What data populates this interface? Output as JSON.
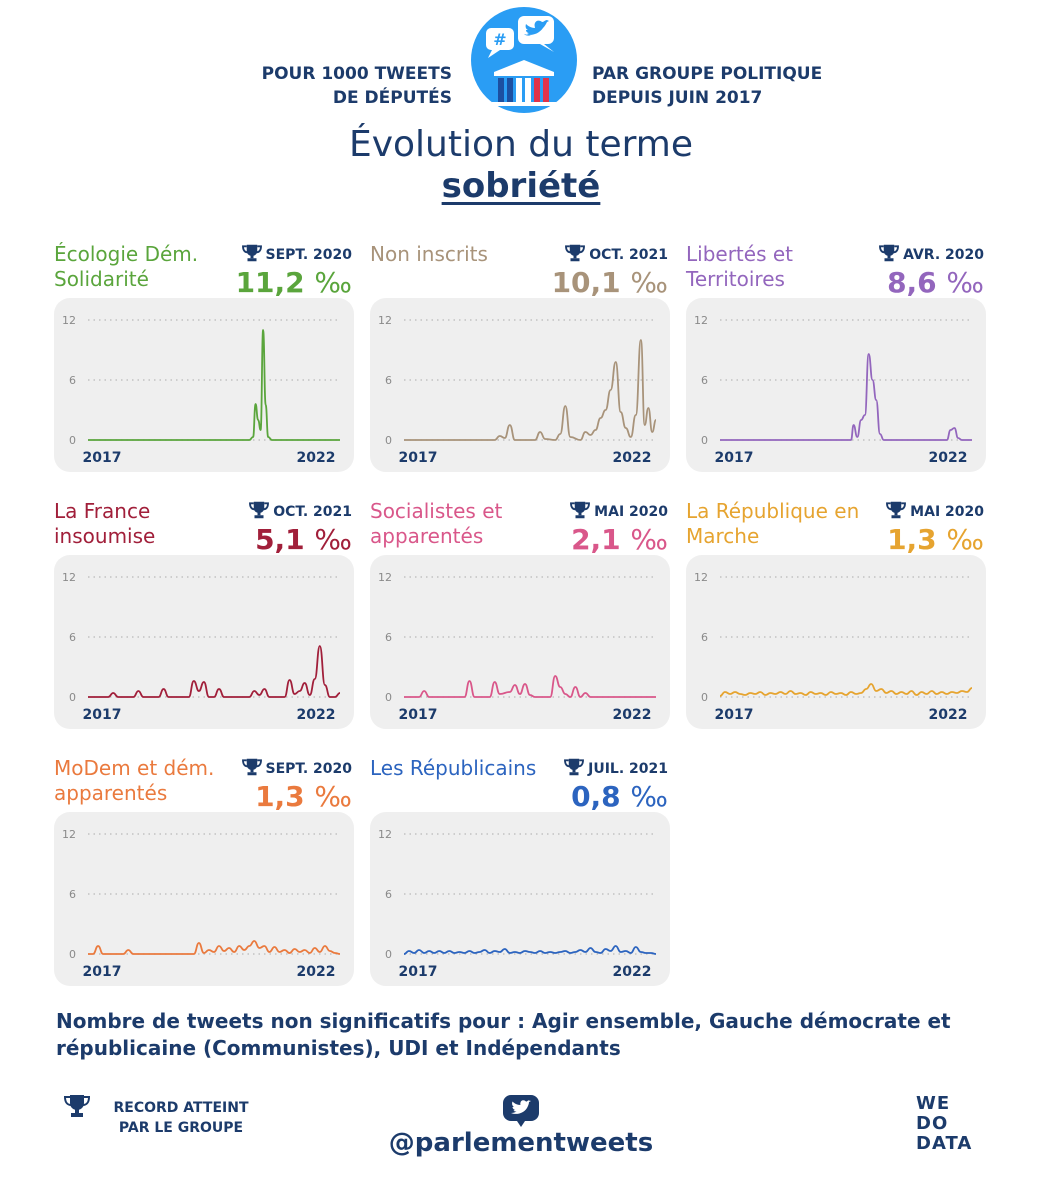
{
  "header": {
    "left_line1": "POUR 1000 TWEETS",
    "left_line2": "DE DÉPUTÉS",
    "right_line1": "PAR GROUPE POLITIQUE",
    "right_line2": "DEPUIS JUIN 2017",
    "logo_hashtag": "#",
    "title": "Évolution du terme",
    "term": "sobriété"
  },
  "colors": {
    "navy": "#1c3b6b",
    "panel_bg": "#efefef",
    "logo_blue": "#2a9df4"
  },
  "chart_data": [
    {
      "type": "line",
      "name": "Écologie Dém. Solidarité",
      "record_period": "SEPT. 2020",
      "record_value": "11,2",
      "unit": "‰",
      "color": "#5aa53c",
      "xlabels": [
        "2017",
        "2022"
      ],
      "yticks": [
        "0",
        "6",
        "12"
      ],
      "ylim": [
        0,
        12
      ],
      "points": [
        [
          0,
          0
        ],
        [
          0.64,
          0
        ],
        [
          0.655,
          0.3
        ],
        [
          0.665,
          3.6
        ],
        [
          0.675,
          2.0
        ],
        [
          0.685,
          1.0
        ],
        [
          0.695,
          11.0
        ],
        [
          0.705,
          3.5
        ],
        [
          0.715,
          0.3
        ],
        [
          0.73,
          0
        ],
        [
          1,
          0
        ]
      ]
    },
    {
      "type": "line",
      "name": "Non inscrits",
      "record_period": "OCT. 2021",
      "record_value": "10,1",
      "unit": "‰",
      "color": "#a8937a",
      "xlabels": [
        "2017",
        "2022"
      ],
      "yticks": [
        "0",
        "6",
        "12"
      ],
      "ylim": [
        0,
        12
      ],
      "points": [
        [
          0,
          0
        ],
        [
          0.36,
          0
        ],
        [
          0.38,
          0.4
        ],
        [
          0.4,
          0.2
        ],
        [
          0.42,
          1.5
        ],
        [
          0.44,
          0
        ],
        [
          0.52,
          0
        ],
        [
          0.54,
          0.8
        ],
        [
          0.56,
          0.1
        ],
        [
          0.6,
          0
        ],
        [
          0.62,
          0.6
        ],
        [
          0.64,
          3.4
        ],
        [
          0.66,
          0.3
        ],
        [
          0.7,
          0
        ],
        [
          0.72,
          0.8
        ],
        [
          0.74,
          0.5
        ],
        [
          0.76,
          1.0
        ],
        [
          0.78,
          2.2
        ],
        [
          0.8,
          3.0
        ],
        [
          0.82,
          5.0
        ],
        [
          0.84,
          7.8
        ],
        [
          0.86,
          2.8
        ],
        [
          0.88,
          1.2
        ],
        [
          0.9,
          0.3
        ],
        [
          0.92,
          2.5
        ],
        [
          0.94,
          10.0
        ],
        [
          0.955,
          1.5
        ],
        [
          0.97,
          3.2
        ],
        [
          0.985,
          0.8
        ],
        [
          1,
          2.0
        ]
      ]
    },
    {
      "type": "line",
      "name": "Libertés et Territoires",
      "record_period": "AVR. 2020",
      "record_value": "8,6",
      "unit": "‰",
      "color": "#9366bd",
      "xlabels": [
        "2017",
        "2022"
      ],
      "yticks": [
        "0",
        "6",
        "12"
      ],
      "ylim": [
        0,
        12
      ],
      "points": [
        [
          0,
          0
        ],
        [
          0.52,
          0
        ],
        [
          0.53,
          1.5
        ],
        [
          0.545,
          0.3
        ],
        [
          0.56,
          2.0
        ],
        [
          0.575,
          2.5
        ],
        [
          0.59,
          8.6
        ],
        [
          0.605,
          6.0
        ],
        [
          0.62,
          4.0
        ],
        [
          0.635,
          0.6
        ],
        [
          0.65,
          0
        ],
        [
          0.9,
          0
        ],
        [
          0.915,
          1.0
        ],
        [
          0.93,
          1.2
        ],
        [
          0.945,
          0.2
        ],
        [
          0.96,
          0
        ],
        [
          1,
          0
        ]
      ]
    },
    {
      "type": "line",
      "name": "La France insoumise",
      "record_period": "OCT. 2021",
      "record_value": "5,1",
      "unit": "‰",
      "color": "#a11f3a",
      "xlabels": [
        "2017",
        "2022"
      ],
      "yticks": [
        "0",
        "6",
        "12"
      ],
      "ylim": [
        0,
        12
      ],
      "points": [
        [
          0,
          0
        ],
        [
          0.08,
          0
        ],
        [
          0.1,
          0.4
        ],
        [
          0.12,
          0
        ],
        [
          0.18,
          0
        ],
        [
          0.2,
          0.6
        ],
        [
          0.22,
          0
        ],
        [
          0.28,
          0
        ],
        [
          0.3,
          0.8
        ],
        [
          0.32,
          0
        ],
        [
          0.4,
          0
        ],
        [
          0.42,
          1.6
        ],
        [
          0.44,
          0.6
        ],
        [
          0.46,
          1.5
        ],
        [
          0.48,
          0
        ],
        [
          0.5,
          0
        ],
        [
          0.52,
          0.8
        ],
        [
          0.54,
          0
        ],
        [
          0.64,
          0
        ],
        [
          0.66,
          0.6
        ],
        [
          0.68,
          0.2
        ],
        [
          0.7,
          0.8
        ],
        [
          0.72,
          0
        ],
        [
          0.78,
          0
        ],
        [
          0.8,
          1.7
        ],
        [
          0.82,
          0.3
        ],
        [
          0.84,
          0.6
        ],
        [
          0.86,
          1.4
        ],
        [
          0.88,
          0.2
        ],
        [
          0.9,
          1.8
        ],
        [
          0.92,
          5.1
        ],
        [
          0.94,
          1.2
        ],
        [
          0.96,
          0
        ],
        [
          0.98,
          0
        ],
        [
          1,
          0.4
        ]
      ]
    },
    {
      "type": "line",
      "name": "Socialistes et apparentés",
      "record_period": "MAI 2020",
      "record_value": "2,1",
      "unit": "‰",
      "color": "#d9578a",
      "xlabels": [
        "2017",
        "2022"
      ],
      "yticks": [
        "0",
        "6",
        "12"
      ],
      "ylim": [
        0,
        12
      ],
      "points": [
        [
          0,
          0
        ],
        [
          0.06,
          0
        ],
        [
          0.08,
          0.6
        ],
        [
          0.1,
          0
        ],
        [
          0.24,
          0
        ],
        [
          0.26,
          1.6
        ],
        [
          0.28,
          0
        ],
        [
          0.34,
          0
        ],
        [
          0.36,
          1.5
        ],
        [
          0.38,
          0.3
        ],
        [
          0.42,
          0.5
        ],
        [
          0.44,
          1.2
        ],
        [
          0.46,
          0.3
        ],
        [
          0.48,
          1.3
        ],
        [
          0.5,
          0.2
        ],
        [
          0.52,
          0
        ],
        [
          0.58,
          0
        ],
        [
          0.6,
          2.1
        ],
        [
          0.62,
          1.0
        ],
        [
          0.64,
          0.3
        ],
        [
          0.66,
          0
        ],
        [
          0.68,
          1.0
        ],
        [
          0.7,
          0
        ],
        [
          0.72,
          0.4
        ],
        [
          0.74,
          0
        ],
        [
          1,
          0
        ]
      ]
    },
    {
      "type": "line",
      "name": "La République en Marche",
      "record_period": "MAI 2020",
      "record_value": "1,3",
      "unit": "‰",
      "color": "#e6a430",
      "xlabels": [
        "2017",
        "2022"
      ],
      "yticks": [
        "0",
        "6",
        "12"
      ],
      "ylim": [
        0,
        12
      ],
      "points": [
        [
          0,
          0.1
        ],
        [
          0.02,
          0.5
        ],
        [
          0.04,
          0.3
        ],
        [
          0.06,
          0.5
        ],
        [
          0.08,
          0.3
        ],
        [
          0.1,
          0.2
        ],
        [
          0.12,
          0.4
        ],
        [
          0.14,
          0.3
        ],
        [
          0.16,
          0.5
        ],
        [
          0.18,
          0.2
        ],
        [
          0.2,
          0.4
        ],
        [
          0.22,
          0.3
        ],
        [
          0.24,
          0.5
        ],
        [
          0.26,
          0.3
        ],
        [
          0.28,
          0.6
        ],
        [
          0.3,
          0.3
        ],
        [
          0.32,
          0.4
        ],
        [
          0.34,
          0.2
        ],
        [
          0.36,
          0.5
        ],
        [
          0.38,
          0.3
        ],
        [
          0.4,
          0.4
        ],
        [
          0.42,
          0.2
        ],
        [
          0.44,
          0.5
        ],
        [
          0.46,
          0.3
        ],
        [
          0.48,
          0.4
        ],
        [
          0.5,
          0.2
        ],
        [
          0.52,
          0.5
        ],
        [
          0.54,
          0.3
        ],
        [
          0.56,
          0.4
        ],
        [
          0.58,
          0.8
        ],
        [
          0.6,
          1.3
        ],
        [
          0.62,
          0.6
        ],
        [
          0.64,
          0.8
        ],
        [
          0.66,
          0.4
        ],
        [
          0.68,
          0.6
        ],
        [
          0.7,
          0.3
        ],
        [
          0.72,
          0.5
        ],
        [
          0.74,
          0.3
        ],
        [
          0.76,
          0.6
        ],
        [
          0.78,
          0.2
        ],
        [
          0.8,
          0.5
        ],
        [
          0.82,
          0.3
        ],
        [
          0.84,
          0.6
        ],
        [
          0.86,
          0.3
        ],
        [
          0.88,
          0.5
        ],
        [
          0.9,
          0.3
        ],
        [
          0.92,
          0.5
        ],
        [
          0.94,
          0.4
        ],
        [
          0.96,
          0.6
        ],
        [
          0.98,
          0.5
        ],
        [
          1,
          0.9
        ]
      ]
    },
    {
      "type": "line",
      "name": "MoDem et dém. apparentés",
      "record_period": "SEPT. 2020",
      "record_value": "1,3",
      "unit": "‰",
      "color": "#ea7a3e",
      "xlabels": [
        "2017",
        "2022"
      ],
      "yticks": [
        "0",
        "6",
        "12"
      ],
      "ylim": [
        0,
        12
      ],
      "points": [
        [
          0,
          0
        ],
        [
          0.02,
          0
        ],
        [
          0.04,
          0.8
        ],
        [
          0.06,
          0
        ],
        [
          0.14,
          0
        ],
        [
          0.16,
          0.4
        ],
        [
          0.18,
          0
        ],
        [
          0.42,
          0
        ],
        [
          0.44,
          1.1
        ],
        [
          0.46,
          0.1
        ],
        [
          0.48,
          0.4
        ],
        [
          0.5,
          0.2
        ],
        [
          0.52,
          0.8
        ],
        [
          0.54,
          0.3
        ],
        [
          0.56,
          0.6
        ],
        [
          0.58,
          0.2
        ],
        [
          0.6,
          0.8
        ],
        [
          0.62,
          0.4
        ],
        [
          0.64,
          0.8
        ],
        [
          0.66,
          1.3
        ],
        [
          0.68,
          0.6
        ],
        [
          0.7,
          0.8
        ],
        [
          0.72,
          0.2
        ],
        [
          0.74,
          0.7
        ],
        [
          0.76,
          0.2
        ],
        [
          0.78,
          0.4
        ],
        [
          0.8,
          0.1
        ],
        [
          0.82,
          0.5
        ],
        [
          0.84,
          0.2
        ],
        [
          0.86,
          0.4
        ],
        [
          0.88,
          0.1
        ],
        [
          0.9,
          0.6
        ],
        [
          0.92,
          0.2
        ],
        [
          0.94,
          0.8
        ],
        [
          0.96,
          0.3
        ],
        [
          0.98,
          0.1
        ],
        [
          1,
          0
        ]
      ]
    },
    {
      "type": "line",
      "name": "Les Républicains",
      "record_period": "JUIL. 2021",
      "record_value": "0,8",
      "unit": "‰",
      "color": "#2c64bf",
      "xlabels": [
        "2017",
        "2022"
      ],
      "yticks": [
        "0",
        "6",
        "12"
      ],
      "ylim": [
        0,
        12
      ],
      "points": [
        [
          0,
          0
        ],
        [
          0.02,
          0.3
        ],
        [
          0.04,
          0.1
        ],
        [
          0.06,
          0.4
        ],
        [
          0.08,
          0.1
        ],
        [
          0.1,
          0.3
        ],
        [
          0.12,
          0.1
        ],
        [
          0.14,
          0.3
        ],
        [
          0.16,
          0.1
        ],
        [
          0.18,
          0.3
        ],
        [
          0.2,
          0.1
        ],
        [
          0.22,
          0.2
        ],
        [
          0.24,
          0.1
        ],
        [
          0.26,
          0.3
        ],
        [
          0.28,
          0.1
        ],
        [
          0.3,
          0.2
        ],
        [
          0.32,
          0.4
        ],
        [
          0.34,
          0.1
        ],
        [
          0.36,
          0.3
        ],
        [
          0.38,
          0.2
        ],
        [
          0.4,
          0.5
        ],
        [
          0.42,
          0.1
        ],
        [
          0.44,
          0.2
        ],
        [
          0.46,
          0.1
        ],
        [
          0.48,
          0.3
        ],
        [
          0.5,
          0.2
        ],
        [
          0.52,
          0.1
        ],
        [
          0.54,
          0.3
        ],
        [
          0.56,
          0.1
        ],
        [
          0.58,
          0.2
        ],
        [
          0.6,
          0.1
        ],
        [
          0.62,
          0.2
        ],
        [
          0.64,
          0.3
        ],
        [
          0.66,
          0.1
        ],
        [
          0.68,
          0.2
        ],
        [
          0.7,
          0.4
        ],
        [
          0.72,
          0.2
        ],
        [
          0.74,
          0.6
        ],
        [
          0.76,
          0.2
        ],
        [
          0.78,
          0.1
        ],
        [
          0.8,
          0.5
        ],
        [
          0.82,
          0.3
        ],
        [
          0.84,
          0.8
        ],
        [
          0.86,
          0.2
        ],
        [
          0.88,
          0.3
        ],
        [
          0.9,
          0.1
        ],
        [
          0.92,
          0.7
        ],
        [
          0.94,
          0.2
        ],
        [
          0.96,
          0.1
        ],
        [
          0.98,
          0.1
        ],
        [
          1,
          0
        ]
      ]
    }
  ],
  "footnote": "Nombre de tweets non significatifs pour : Agir ensemble, Gauche démocrate et républicaine (Communistes), UDI et Indépendants",
  "footer": {
    "legend_line1": "RECORD ATTEINT",
    "legend_line2": "PAR LE GROUPE",
    "handle": "@parlementweets",
    "brand_line1": "WE",
    "brand_line2": "DO",
    "brand_line3": "DATA"
  }
}
